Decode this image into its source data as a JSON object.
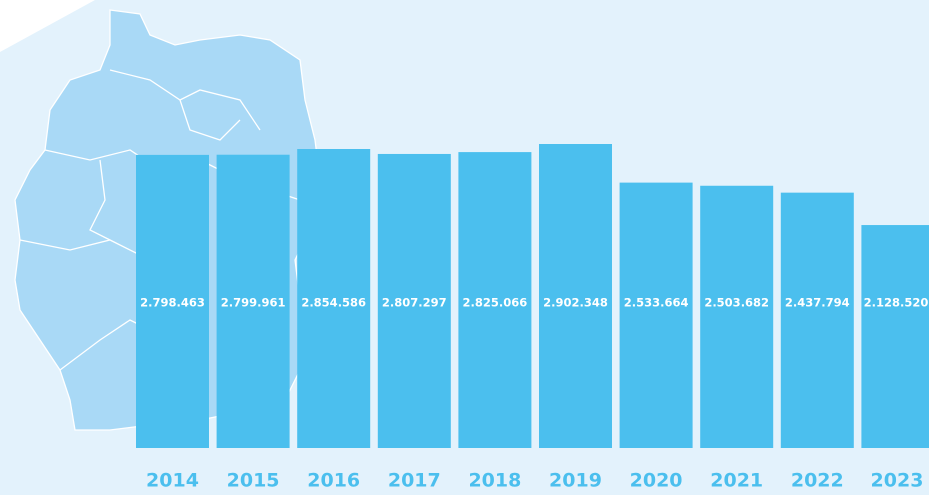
{
  "chart_data": {
    "type": "bar",
    "categories": [
      "2014",
      "2015",
      "2016",
      "2017",
      "2018",
      "2019",
      "2020",
      "2021",
      "2022",
      "2023"
    ],
    "values": [
      2798463,
      2799961,
      2854586,
      2807297,
      2825066,
      2902348,
      2533664,
      2503682,
      2437794,
      2128520
    ],
    "value_labels": [
      "2.798.463",
      "2.799.961",
      "2.854.586",
      "2.807.297",
      "2.825.066",
      "2.902.348",
      "2.533.664",
      "2.503.682",
      "2.437.794",
      "2.128.520"
    ],
    "color": "#4bbfee"
  }
}
